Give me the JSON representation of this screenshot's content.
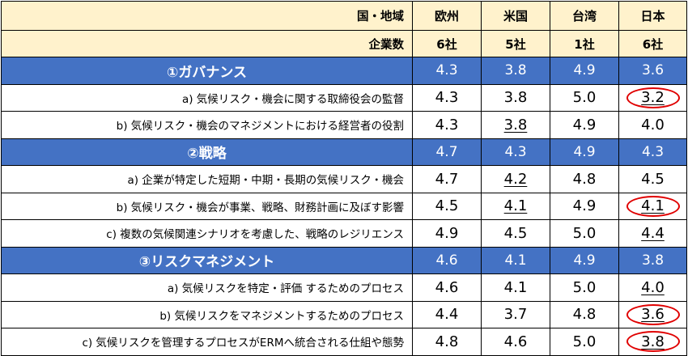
{
  "header": {
    "region_label": "国・地域",
    "regions": [
      "欧州",
      "米国",
      "台湾",
      "日本"
    ],
    "count_label": "企業数",
    "counts": [
      "6社",
      "5社",
      "1社",
      "6社"
    ]
  },
  "rows": [
    {
      "type": "section",
      "label": "①ガバナンス",
      "values": [
        "4.3",
        "3.8",
        "4.9",
        "3.6"
      ],
      "underline": [
        false,
        false,
        false,
        false
      ],
      "circled": [
        false,
        false,
        false,
        false
      ]
    },
    {
      "type": "item",
      "label": "a) 気候リスク・機会に関する取締役会の監督",
      "values": [
        "4.3",
        "3.8",
        "5.0",
        "3.2"
      ],
      "underline": [
        false,
        false,
        false,
        true
      ],
      "circled": [
        false,
        false,
        false,
        true
      ]
    },
    {
      "type": "item",
      "label": "b) 気候リスク・機会のマネジメントにおける経営者の役割",
      "values": [
        "4.3",
        "3.8",
        "4.9",
        "4.0"
      ],
      "underline": [
        false,
        true,
        false,
        false
      ],
      "circled": [
        false,
        false,
        false,
        false
      ]
    },
    {
      "type": "section",
      "label": "②戦略",
      "values": [
        "4.7",
        "4.3",
        "4.9",
        "4.3"
      ],
      "underline": [
        false,
        false,
        false,
        false
      ],
      "circled": [
        false,
        false,
        false,
        false
      ]
    },
    {
      "type": "item",
      "label": "a) 企業が特定した短期・中期・長期の気候リスク・機会",
      "values": [
        "4.7",
        "4.2",
        "4.8",
        "4.5"
      ],
      "underline": [
        false,
        true,
        false,
        false
      ],
      "circled": [
        false,
        false,
        false,
        false
      ]
    },
    {
      "type": "item",
      "label": "b) 気候リスク・機会が事業、戦略、財務計画に及ぼす影響",
      "values": [
        "4.5",
        "4.1",
        "4.9",
        "4.1"
      ],
      "underline": [
        false,
        true,
        false,
        true
      ],
      "circled": [
        false,
        false,
        false,
        true
      ]
    },
    {
      "type": "item",
      "label": "c) 複数の気候関連シナリオを考慮した、戦略のレジリエンス",
      "values": [
        "4.9",
        "4.5",
        "5.0",
        "4.4"
      ],
      "underline": [
        false,
        false,
        false,
        true
      ],
      "circled": [
        false,
        false,
        false,
        false
      ]
    },
    {
      "type": "section",
      "label": "③リスクマネジメント",
      "values": [
        "4.6",
        "4.1",
        "4.9",
        "3.8"
      ],
      "underline": [
        false,
        false,
        false,
        false
      ],
      "circled": [
        false,
        false,
        false,
        false
      ]
    },
    {
      "type": "item",
      "label": "a) 気候リスクを特定・評価 するためのプロセス",
      "values": [
        "4.6",
        "4.1",
        "5.0",
        "4.0"
      ],
      "underline": [
        false,
        false,
        false,
        true
      ],
      "circled": [
        false,
        false,
        false,
        false
      ]
    },
    {
      "type": "item",
      "label": "b) 気候リスクをマネジメントするためのプロセス",
      "values": [
        "4.4",
        "3.7",
        "4.8",
        "3.6"
      ],
      "underline": [
        false,
        false,
        false,
        true
      ],
      "circled": [
        false,
        false,
        false,
        true
      ]
    },
    {
      "type": "item",
      "label": "c) 気候リスクを管理するプロセスがERMへ統合される仕組や態勢",
      "values": [
        "4.8",
        "4.6",
        "5.0",
        "3.8"
      ],
      "underline": [
        false,
        false,
        false,
        true
      ],
      "circled": [
        false,
        false,
        false,
        true
      ]
    }
  ],
  "colors": {
    "header_bg": "#fff2cc",
    "section_bg": "#4472c4",
    "section_text": "#ffffff",
    "circle": "#e00000",
    "border": "#000000"
  }
}
